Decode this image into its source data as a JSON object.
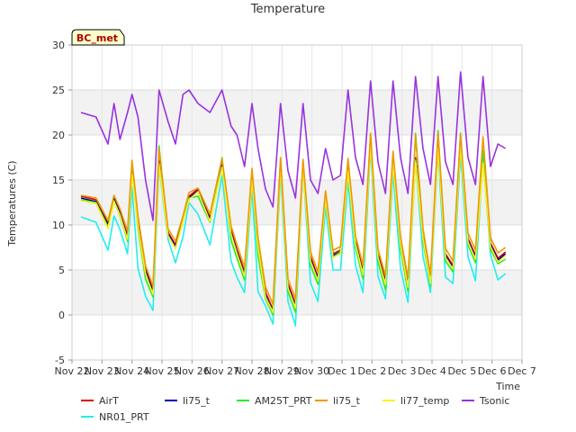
{
  "chart_data": {
    "type": "line",
    "title": "Temperature",
    "badge": "BC_met",
    "xlabel": "Time",
    "ylabel": "Temperatures (C)",
    "ylim": [
      -5,
      30
    ],
    "yticks": [
      -5,
      0,
      5,
      10,
      15,
      20,
      25,
      30
    ],
    "xlim": [
      0,
      15
    ],
    "x_tick_labels": [
      "Nov 22",
      "Nov 23",
      "Nov 24",
      "Nov 25",
      "Nov 26",
      "Nov 27",
      "Nov 28",
      "Nov 29",
      "Nov 30",
      "Dec 1",
      "Dec 2",
      "Dec 3",
      "Dec 4",
      "Dec 5",
      "Dec 6",
      "Dec 7"
    ],
    "grid": true,
    "legend_position": "bottom",
    "x": [
      0.3,
      0.8,
      1.2,
      1.4,
      1.6,
      1.85,
      2.0,
      2.2,
      2.45,
      2.7,
      2.9,
      3.2,
      3.45,
      3.7,
      3.9,
      4.2,
      4.6,
      5.0,
      5.3,
      5.5,
      5.75,
      6.0,
      6.2,
      6.45,
      6.7,
      6.95,
      7.2,
      7.45,
      7.7,
      7.95,
      8.2,
      8.45,
      8.7,
      8.95,
      9.2,
      9.45,
      9.7,
      9.95,
      10.2,
      10.45,
      10.7,
      10.95,
      11.2,
      11.45,
      11.7,
      11.95,
      12.2,
      12.45,
      12.7,
      12.95,
      13.2,
      13.45,
      13.7,
      13.95,
      14.2,
      14.45
    ],
    "series": [
      {
        "name": "AirT",
        "color": "#dd0000",
        "values": [
          13.2,
          12.8,
          10.2,
          13.1,
          11.5,
          8.8,
          16.2,
          10.5,
          5.1,
          2.8,
          17.2,
          9.2,
          7.8,
          10.8,
          13.2,
          14.0,
          10.8,
          16.8,
          9.5,
          7.2,
          4.8,
          15.5,
          8.2,
          2.5,
          0.6,
          17.0,
          3.5,
          1.2,
          16.8,
          6.5,
          4.2,
          13.4,
          6.8,
          7.2,
          16.4,
          8.3,
          4.9,
          19.5,
          6.8,
          3.8,
          17.2,
          8.2,
          3.5,
          17.5,
          9.0,
          3.9,
          19.0,
          6.8,
          5.5,
          19.2,
          8.5,
          6.6,
          17.3,
          8.0,
          6.3,
          7.0
        ]
      },
      {
        "name": "NR01_PRT",
        "color": "#22eeee",
        "values": [
          10.9,
          10.3,
          7.2,
          11.0,
          9.5,
          6.8,
          14.2,
          5.2,
          2.1,
          0.5,
          16.5,
          8.4,
          5.8,
          8.7,
          12.5,
          11.2,
          7.8,
          15.5,
          6.0,
          4.2,
          2.5,
          14.2,
          2.6,
          1.0,
          -1.0,
          15.8,
          1.5,
          -1.2,
          16.5,
          3.6,
          1.5,
          12.0,
          5.0,
          5.0,
          14.8,
          5.5,
          2.5,
          18.5,
          4.3,
          1.8,
          15.8,
          5.2,
          1.4,
          17.2,
          6.5,
          2.5,
          18.2,
          4.2,
          3.5,
          17.8,
          6.5,
          3.8,
          17.5,
          6.7,
          3.9,
          4.6
        ]
      },
      {
        "name": "li75_t",
        "color": "#0000aa",
        "values": [
          13.0,
          12.6,
          10.0,
          12.9,
          11.3,
          8.6,
          16.0,
          10.2,
          4.9,
          2.6,
          17.0,
          9.0,
          7.6,
          10.6,
          13.0,
          13.8,
          10.6,
          16.6,
          9.2,
          7.0,
          4.5,
          15.3,
          7.9,
          2.2,
          0.4,
          16.8,
          3.2,
          1.0,
          16.6,
          6.2,
          4.0,
          13.2,
          6.6,
          7.0,
          16.2,
          8.1,
          4.7,
          19.3,
          6.6,
          3.6,
          17.0,
          8.0,
          3.3,
          17.3,
          8.8,
          3.7,
          18.8,
          6.6,
          5.3,
          19.0,
          8.3,
          6.4,
          17.1,
          7.8,
          6.1,
          6.8
        ]
      },
      {
        "name": "AM25T_PRT",
        "color": "#22ee22",
        "values": [
          12.8,
          12.5,
          9.8,
          12.7,
          11.0,
          8.2,
          16.5,
          9.5,
          4.0,
          2.0,
          18.8,
          8.8,
          7.4,
          10.4,
          13.0,
          13.2,
          10.3,
          17.5,
          8.3,
          6.3,
          3.9,
          15.8,
          6.5,
          1.8,
          0.0,
          17.2,
          2.6,
          0.3,
          17.0,
          5.5,
          3.4,
          13.6,
          6.4,
          7.0,
          16.6,
          7.5,
          4.0,
          20.0,
          5.9,
          2.8,
          17.6,
          7.3,
          2.6,
          20.2,
          8.2,
          3.2,
          20.5,
          6.0,
          4.8,
          20.2,
          7.8,
          5.8,
          18.3,
          7.3,
          5.7,
          6.2
        ]
      },
      {
        "name": "li75_t",
        "color": "#ee9900",
        "values": [
          13.3,
          13.0,
          10.5,
          13.3,
          11.8,
          9.3,
          17.2,
          11.0,
          5.5,
          3.2,
          18.5,
          9.6,
          8.2,
          11.0,
          13.6,
          14.1,
          11.2,
          17.4,
          9.9,
          7.8,
          5.3,
          16.3,
          8.6,
          3.1,
          1.2,
          17.5,
          4.0,
          1.8,
          17.3,
          7.0,
          4.8,
          13.8,
          7.2,
          7.6,
          17.4,
          8.8,
          5.5,
          20.2,
          7.3,
          4.4,
          18.2,
          8.7,
          4.1,
          20.0,
          9.6,
          4.5,
          20.3,
          7.4,
          6.0,
          20.1,
          9.1,
          7.2,
          19.8,
          8.6,
          6.9,
          7.5
        ]
      },
      {
        "name": "li77_temp",
        "color": "#ffee22",
        "values": [
          12.7,
          12.4,
          9.6,
          12.6,
          11.1,
          8.4,
          15.6,
          9.8,
          4.6,
          2.3,
          16.8,
          8.8,
          7.4,
          10.4,
          12.8,
          13.7,
          10.4,
          16.4,
          9.0,
          6.8,
          4.3,
          15.0,
          7.6,
          2.0,
          0.3,
          16.5,
          3.0,
          0.8,
          16.3,
          6.0,
          3.8,
          13.0,
          6.4,
          6.8,
          16.0,
          7.9,
          4.5,
          19.0,
          6.4,
          3.4,
          16.8,
          7.8,
          3.1,
          17.0,
          8.6,
          3.5,
          18.6,
          6.4,
          5.1,
          18.8,
          8.1,
          6.2,
          16.9,
          7.6,
          5.9,
          6.6
        ]
      },
      {
        "name": "Tsonic",
        "color": "#9933dd",
        "values": [
          22.5,
          22.0,
          19.0,
          23.5,
          19.5,
          22.5,
          24.5,
          22.0,
          15.0,
          10.5,
          25.0,
          21.5,
          19.0,
          24.5,
          25.0,
          23.5,
          22.5,
          25.0,
          21.0,
          20.0,
          16.5,
          23.5,
          18.5,
          14.0,
          12.0,
          23.5,
          16.0,
          13.0,
          23.5,
          15.0,
          13.5,
          18.5,
          15.0,
          15.5,
          25.0,
          17.5,
          14.5,
          26.0,
          17.0,
          13.5,
          26.0,
          17.5,
          13.5,
          26.5,
          18.5,
          14.5,
          26.5,
          17.0,
          14.5,
          27.0,
          17.5,
          14.5,
          26.5,
          16.5,
          19.0,
          18.5
        ]
      }
    ]
  }
}
